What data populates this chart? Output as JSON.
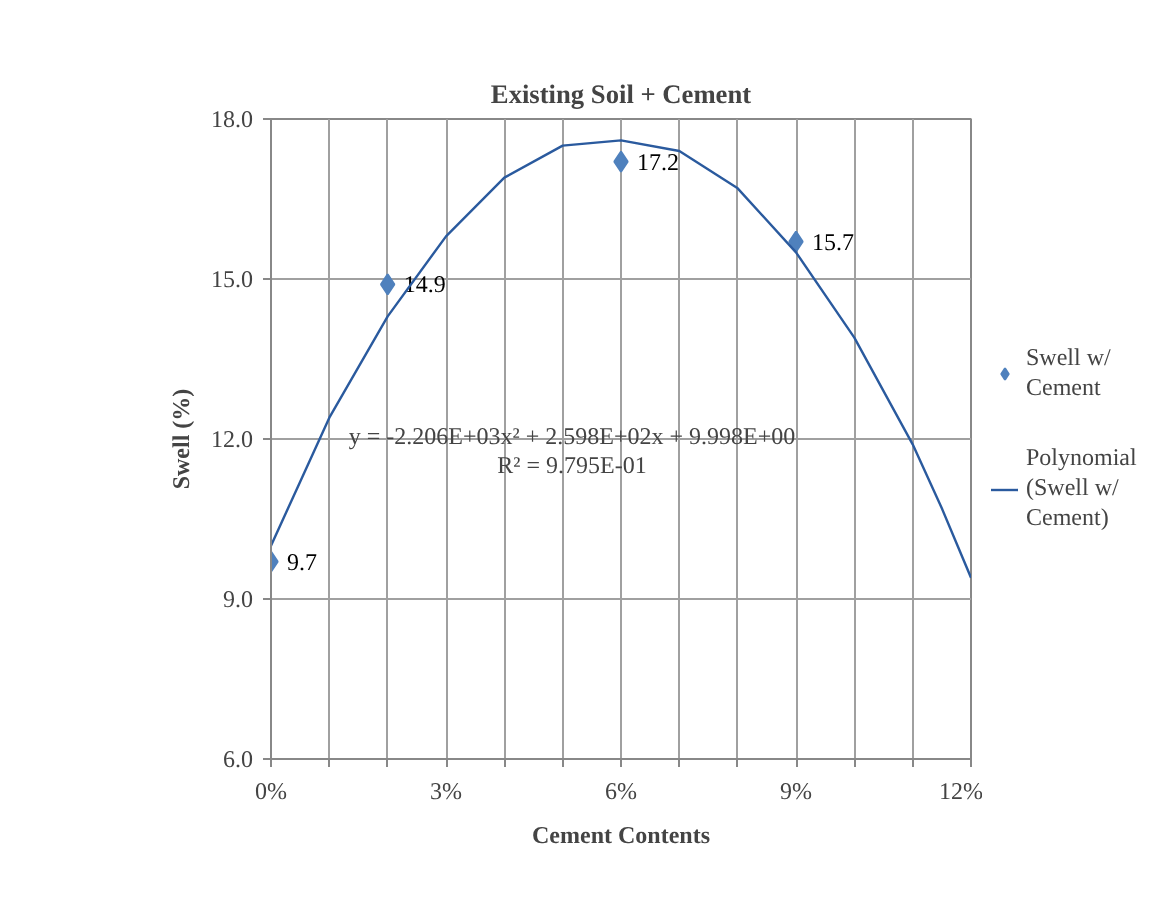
{
  "chart_data": {
    "type": "scatter",
    "title": "Existing Soil + Cement",
    "xlabel": "Cement Contents",
    "ylabel": "Swell (%)",
    "xlim": [
      0,
      0.12
    ],
    "ylim": [
      6,
      18
    ],
    "xticks": [
      {
        "value": 0,
        "label": "0%"
      },
      {
        "value": 0.01,
        "label": null
      },
      {
        "value": 0.02,
        "label": null
      },
      {
        "value": 0.03,
        "label": "3%"
      },
      {
        "value": 0.04,
        "label": null
      },
      {
        "value": 0.05,
        "label": null
      },
      {
        "value": 0.06,
        "label": "6%"
      },
      {
        "value": 0.07,
        "label": null
      },
      {
        "value": 0.08,
        "label": null
      },
      {
        "value": 0.09,
        "label": "9%"
      },
      {
        "value": 0.1,
        "label": null
      },
      {
        "value": 0.11,
        "label": null
      },
      {
        "value": 0.12,
        "label": "12%"
      }
    ],
    "yticks": [
      {
        "value": 6,
        "label": "6.0"
      },
      {
        "value": 9,
        "label": "9.0"
      },
      {
        "value": 12,
        "label": "12.0"
      },
      {
        "value": 15,
        "label": "15.0"
      },
      {
        "value": 18,
        "label": "18.0"
      }
    ],
    "grid": true,
    "legend": "right",
    "series": [
      {
        "name": "Swell w/ Cement",
        "marker": "diamond",
        "color": "#4f81bd",
        "x": [
          0,
          0.02,
          0.06,
          0.09
        ],
        "values": [
          9.7,
          14.9,
          17.2,
          15.7
        ],
        "data_labels": true
      },
      {
        "name": "Polynomial (Swell w/ Cement)",
        "type": "line",
        "marker": "none",
        "line_style": "solid",
        "color": "#2a5a9e",
        "x": [
          0,
          0.005,
          0.01,
          0.02,
          0.03,
          0.04,
          0.05,
          0.06,
          0.07,
          0.08,
          0.09,
          0.1,
          0.11,
          0.115,
          0.12
        ],
        "values": [
          10.0,
          11.2,
          12.4,
          14.3,
          15.8,
          16.9,
          17.5,
          17.6,
          17.4,
          16.7,
          15.5,
          13.9,
          11.9,
          10.7,
          9.4
        ]
      }
    ],
    "annotations": [
      "y = -2.206E+03x² + 2.598E+02x + 9.998E+00",
      "R² = 9.795E-01"
    ]
  }
}
